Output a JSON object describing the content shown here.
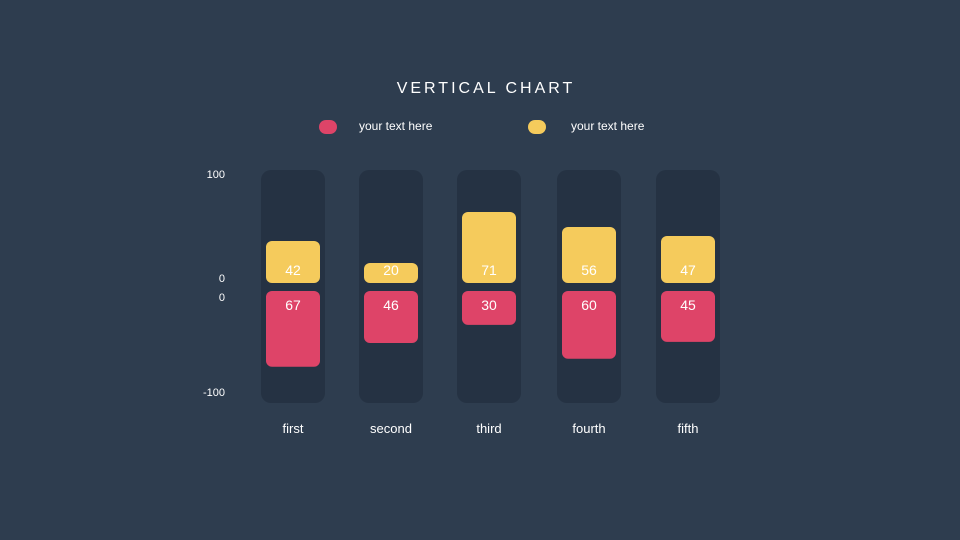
{
  "chart_data": {
    "type": "bar",
    "title": "VERTICAL CHART",
    "categories": [
      "first",
      "second",
      "third",
      "fourth",
      "fifth"
    ],
    "series": [
      {
        "name": "your text here",
        "color": "#de4468",
        "direction": "down",
        "values": [
          67,
          46,
          30,
          60,
          45
        ]
      },
      {
        "name": "your text here",
        "color": "#f5cb5c",
        "direction": "up",
        "values": [
          42,
          20,
          71,
          56,
          47
        ]
      }
    ],
    "y_ticks_upper": [
      "100",
      "0"
    ],
    "y_ticks_lower": [
      "0",
      "-100"
    ],
    "ylim": [
      -100,
      100
    ],
    "legend": "top",
    "grid": false
  },
  "colors": {
    "background": "#2e3d4f",
    "track": "#253243",
    "text": "#ffffff"
  }
}
